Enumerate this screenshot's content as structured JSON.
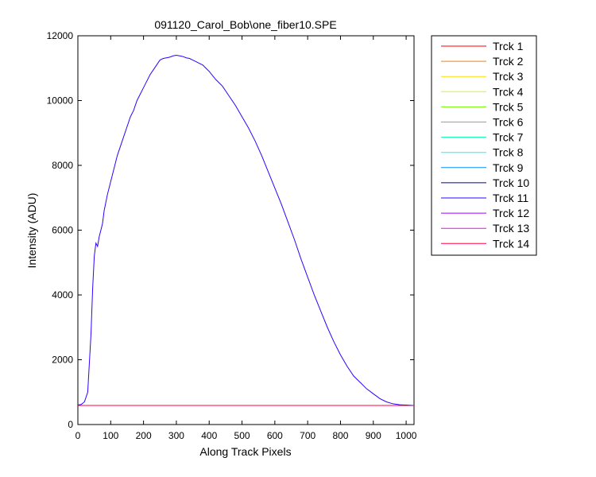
{
  "chart_data": {
    "type": "line",
    "title": "091120_Carol_Bob\\one_fiber10.SPE",
    "xlabel": "Along Track Pixels",
    "ylabel": "Intensity (ADU)",
    "xlim": [
      0,
      1024
    ],
    "ylim": [
      0,
      12000
    ],
    "xticks": [
      0,
      100,
      200,
      300,
      400,
      500,
      600,
      700,
      800,
      900,
      1000
    ],
    "yticks": [
      0,
      2000,
      4000,
      6000,
      8000,
      10000,
      12000
    ],
    "grid": false,
    "legend_position": "outside-right",
    "series": [
      {
        "name": "Trck 1",
        "color": "#ff0000",
        "x": [
          0,
          1024
        ],
        "y": [
          590,
          590
        ]
      },
      {
        "name": "Trck 2",
        "color": "#ff7f00",
        "x": [
          0,
          1024
        ],
        "y": [
          590,
          590
        ]
      },
      {
        "name": "Trck 3",
        "color": "#ffdf00",
        "x": [
          0,
          1024
        ],
        "y": [
          590,
          590
        ]
      },
      {
        "name": "Trck 4",
        "color": "#cfff00",
        "x": [
          0,
          1024
        ],
        "y": [
          590,
          590
        ]
      },
      {
        "name": "Trck 5",
        "color": "#6fff00",
        "x": [
          0,
          1024
        ],
        "y": [
          590,
          590
        ]
      },
      {
        "name": "Trck 6",
        "color": "#00ff40",
        "x": [
          0,
          1024
        ],
        "y": [
          590,
          590
        ]
      },
      {
        "name": "Trck 7",
        "color": "#00ffa0",
        "x": [
          0,
          1024
        ],
        "y": [
          590,
          590
        ]
      },
      {
        "name": "Trck 8",
        "color": "#00ffff",
        "x": [
          0,
          1024
        ],
        "y": [
          590,
          590
        ]
      },
      {
        "name": "Trck 9",
        "color": "#0090ff",
        "x": [
          0,
          1024
        ],
        "y": [
          590,
          590
        ]
      },
      {
        "name": "Trck 10",
        "color": "#0000a0",
        "x": [
          0,
          1024
        ],
        "y": [
          590,
          590
        ]
      },
      {
        "name": "Trck 11",
        "color": "#3000ff",
        "x": [
          0,
          10,
          20,
          30,
          40,
          45,
          50,
          55,
          60,
          65,
          70,
          75,
          80,
          90,
          100,
          110,
          120,
          130,
          140,
          150,
          160,
          170,
          180,
          190,
          200,
          210,
          220,
          230,
          240,
          250,
          260,
          270,
          280,
          290,
          300,
          310,
          320,
          330,
          340,
          350,
          360,
          370,
          380,
          390,
          400,
          420,
          440,
          460,
          480,
          500,
          520,
          540,
          560,
          580,
          600,
          620,
          640,
          660,
          680,
          700,
          720,
          740,
          760,
          780,
          800,
          820,
          840,
          860,
          880,
          900,
          920,
          940,
          960,
          980,
          1000,
          1010,
          1020
        ],
        "y": [
          600,
          620,
          700,
          1000,
          2800,
          4200,
          5200,
          5600,
          5500,
          5800,
          6000,
          6200,
          6600,
          7100,
          7500,
          7900,
          8300,
          8600,
          8900,
          9200,
          9500,
          9700,
          10000,
          10200,
          10400,
          10600,
          10800,
          10950,
          11100,
          11250,
          11300,
          11320,
          11340,
          11380,
          11400,
          11380,
          11360,
          11320,
          11300,
          11250,
          11200,
          11150,
          11100,
          11000,
          10900,
          10650,
          10450,
          10150,
          9850,
          9500,
          9150,
          8750,
          8300,
          7800,
          7300,
          6800,
          6250,
          5700,
          5100,
          4550,
          4000,
          3500,
          3000,
          2550,
          2150,
          1800,
          1500,
          1300,
          1100,
          950,
          800,
          700,
          640,
          610,
          600,
          595,
          590
        ]
      },
      {
        "name": "Trck 12",
        "color": "#a000ff",
        "x": [
          0,
          1024
        ],
        "y": [
          590,
          590
        ]
      },
      {
        "name": "Trck 13",
        "color": "#ff00ff",
        "x": [
          0,
          1024
        ],
        "y": [
          590,
          590
        ]
      },
      {
        "name": "Trck 14",
        "color": "#ff0040",
        "x": [
          0,
          1024
        ],
        "y": [
          590,
          590
        ]
      }
    ]
  }
}
